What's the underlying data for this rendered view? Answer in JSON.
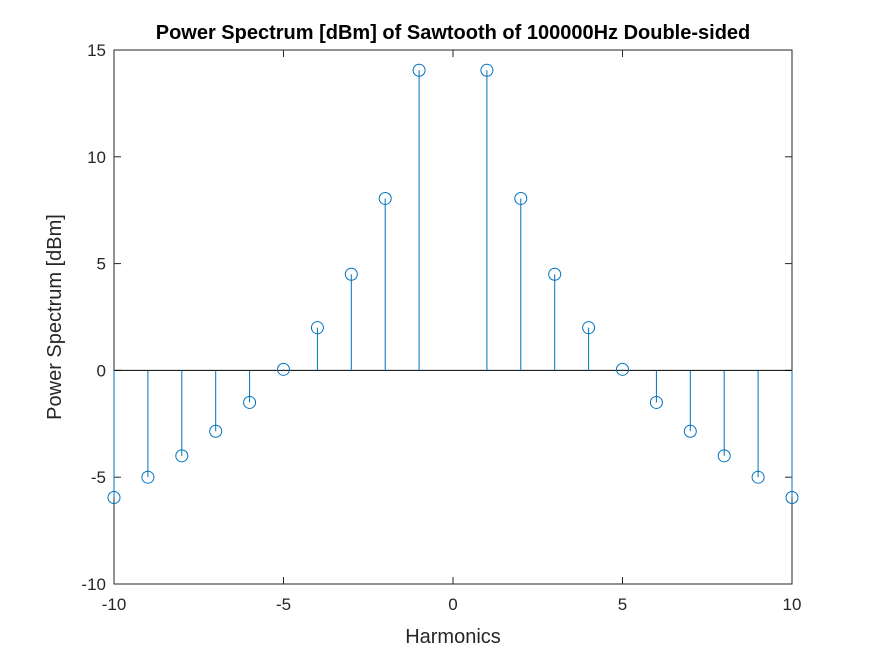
{
  "chart_data": {
    "type": "stem",
    "title": "Power Spectrum [dBm] of Sawtooth of 100000Hz Double-sided",
    "xlabel": "Harmonics",
    "ylabel": "Power Spectrum [dBm]",
    "xlim": [
      -10,
      10
    ],
    "ylim": [
      -10,
      15
    ],
    "xticks": [
      -10,
      -5,
      0,
      5,
      10
    ],
    "yticks": [
      -10,
      -5,
      0,
      5,
      10,
      15
    ],
    "xtick_labels": [
      "-10",
      "-5",
      "0",
      "5",
      "10"
    ],
    "ytick_labels": [
      "-10",
      "-5",
      "0",
      "5",
      "10",
      "15"
    ],
    "grid": false,
    "baseline": 0,
    "series_color": "#0072BD",
    "x": [
      -10,
      -9,
      -8,
      -7,
      -6,
      -5,
      -4,
      -3,
      -2,
      -1,
      1,
      2,
      3,
      4,
      5,
      6,
      7,
      8,
      9,
      10
    ],
    "values": [
      -5.95,
      -5.0,
      -4.0,
      -2.85,
      -1.5,
      0.05,
      2.0,
      4.5,
      8.05,
      14.05,
      14.05,
      8.05,
      4.5,
      2.0,
      0.05,
      -1.5,
      -2.85,
      -4.0,
      -5.0,
      -5.95
    ]
  }
}
